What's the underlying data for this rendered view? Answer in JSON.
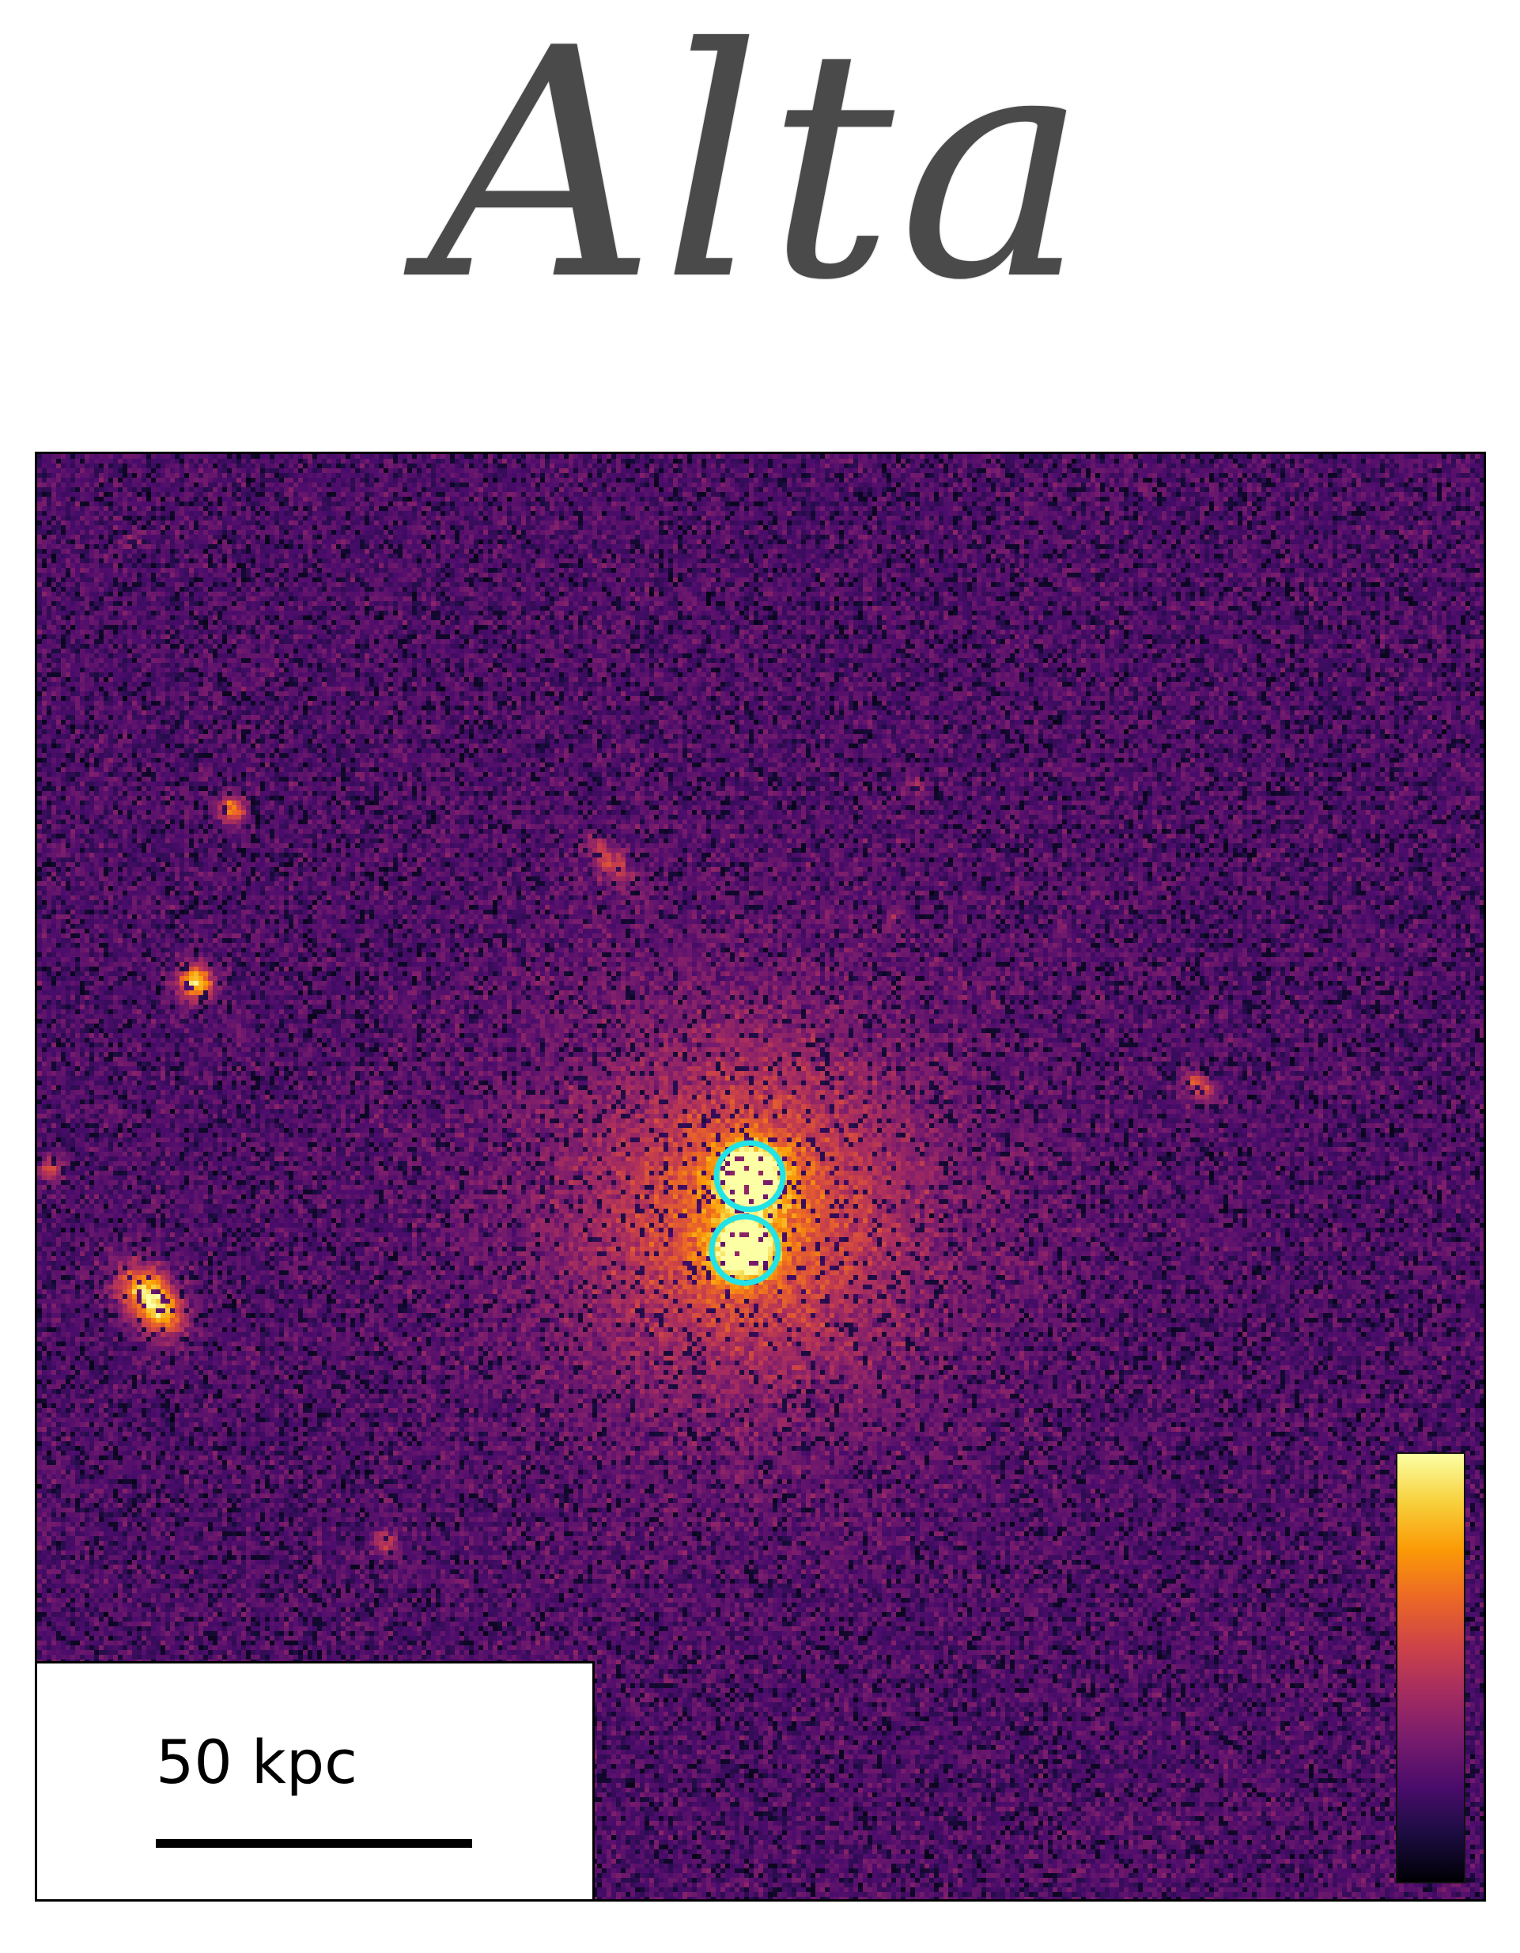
{
  "title": "Alta",
  "image": {
    "colormap_name": "inferno",
    "colormap_stops": [
      "#000004",
      "#1b0c41",
      "#4a0c6b",
      "#781c6d",
      "#a52c60",
      "#cf4446",
      "#ed6925",
      "#fb9b06",
      "#f7d13d",
      "#fcffa4"
    ],
    "highlight_color": "#22e3e6",
    "highlight_marker_names": [
      "upper-nucleus-marker",
      "lower-nucleus-marker"
    ]
  },
  "scale_bar": {
    "label": "50 kpc"
  },
  "colorbar": {
    "ticks_visible": false
  }
}
